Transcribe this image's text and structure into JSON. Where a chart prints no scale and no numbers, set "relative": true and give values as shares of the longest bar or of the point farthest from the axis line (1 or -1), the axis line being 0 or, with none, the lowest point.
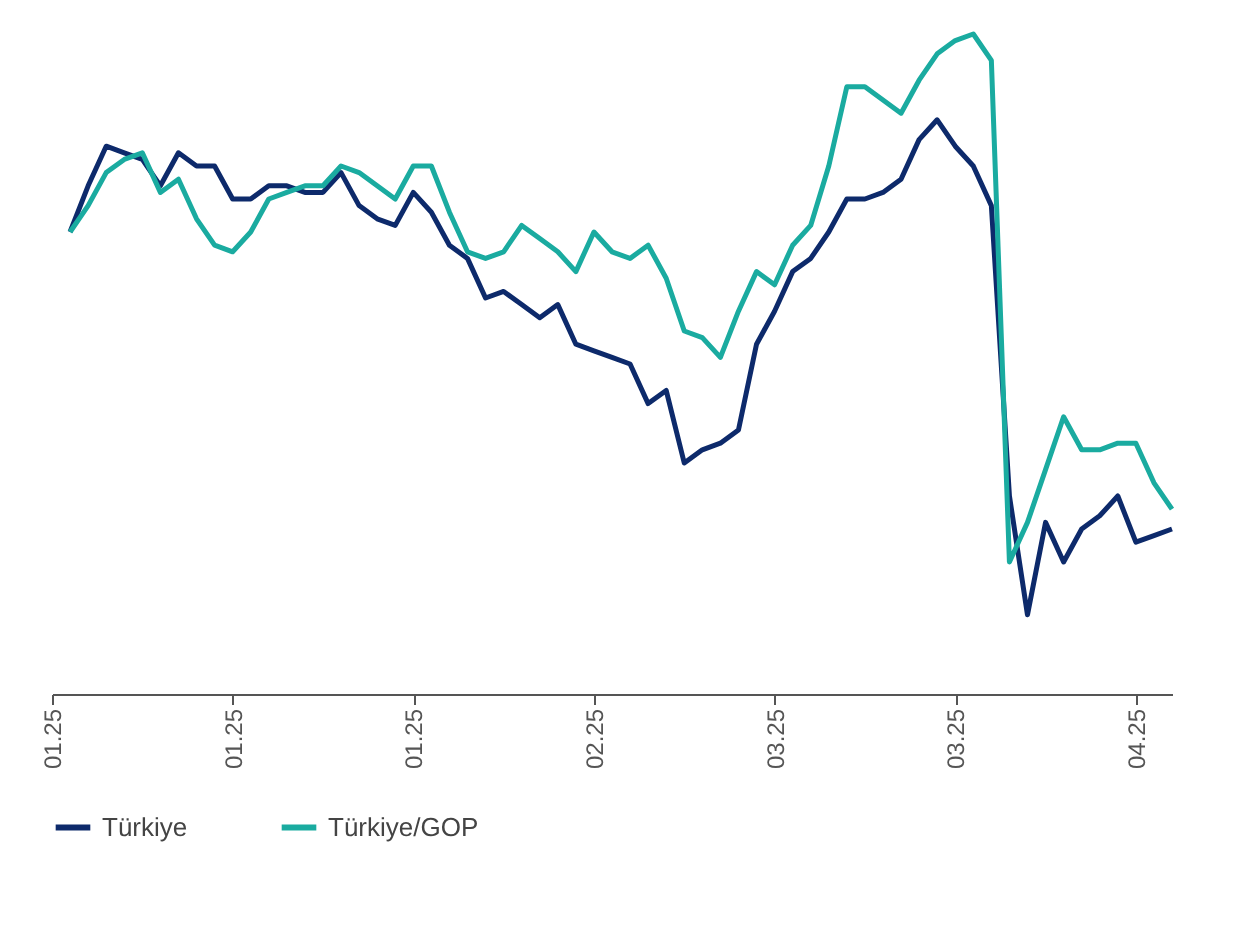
{
  "chart_data": {
    "type": "line",
    "relative": true,
    "legend": "bottom",
    "grid": false,
    "line_style": "solid",
    "marker": "none",
    "categories": [
      "01.25",
      null,
      null,
      null,
      null,
      null,
      null,
      null,
      null,
      null,
      "01.25",
      null,
      null,
      null,
      null,
      null,
      null,
      null,
      null,
      null,
      "01.25",
      null,
      null,
      null,
      null,
      null,
      null,
      null,
      null,
      null,
      "02.25",
      null,
      null,
      null,
      null,
      null,
      null,
      null,
      null,
      null,
      "03.25",
      null,
      null,
      null,
      null,
      null,
      null,
      null,
      null,
      null,
      "03.25",
      null,
      null,
      null,
      null,
      null,
      null,
      null,
      null,
      null,
      "04.25",
      null,
      null
    ],
    "series": [
      {
        "name": "Türkiye",
        "color": "#0d2a6b",
        "values": [
          null,
          0.7,
          0.77,
          0.83,
          0.82,
          0.81,
          0.77,
          0.82,
          0.8,
          0.8,
          0.75,
          0.75,
          0.77,
          0.77,
          0.76,
          0.76,
          0.79,
          0.74,
          0.72,
          0.71,
          0.76,
          0.73,
          0.68,
          0.66,
          0.6,
          0.61,
          0.59,
          0.57,
          0.59,
          0.53,
          0.52,
          0.51,
          0.5,
          0.44,
          0.46,
          0.35,
          0.37,
          0.38,
          0.4,
          0.53,
          0.58,
          0.64,
          0.66,
          0.7,
          0.75,
          0.75,
          0.76,
          0.78,
          0.84,
          0.87,
          0.83,
          0.8,
          0.74,
          0.3,
          0.12,
          0.26,
          0.2,
          0.25,
          0.27,
          0.3,
          0.23,
          0.24,
          0.25
        ]
      },
      {
        "name": "Türkiye/GOP",
        "color": "#1aaba0",
        "values": [
          null,
          0.7,
          0.74,
          0.79,
          0.81,
          0.82,
          0.76,
          0.78,
          0.72,
          0.68,
          0.67,
          0.7,
          0.75,
          0.76,
          0.77,
          0.77,
          0.8,
          0.79,
          0.77,
          0.75,
          0.8,
          0.8,
          0.73,
          0.67,
          0.66,
          0.67,
          0.71,
          0.69,
          0.67,
          0.64,
          0.7,
          0.67,
          0.66,
          0.68,
          0.63,
          0.55,
          0.54,
          0.51,
          0.58,
          0.64,
          0.62,
          0.68,
          0.71,
          0.8,
          0.92,
          0.92,
          0.9,
          0.88,
          0.93,
          0.97,
          0.99,
          1.0,
          0.96,
          0.2,
          0.26,
          0.34,
          0.42,
          0.37,
          0.37,
          0.38,
          0.38,
          0.32,
          0.28
        ]
      }
    ]
  }
}
